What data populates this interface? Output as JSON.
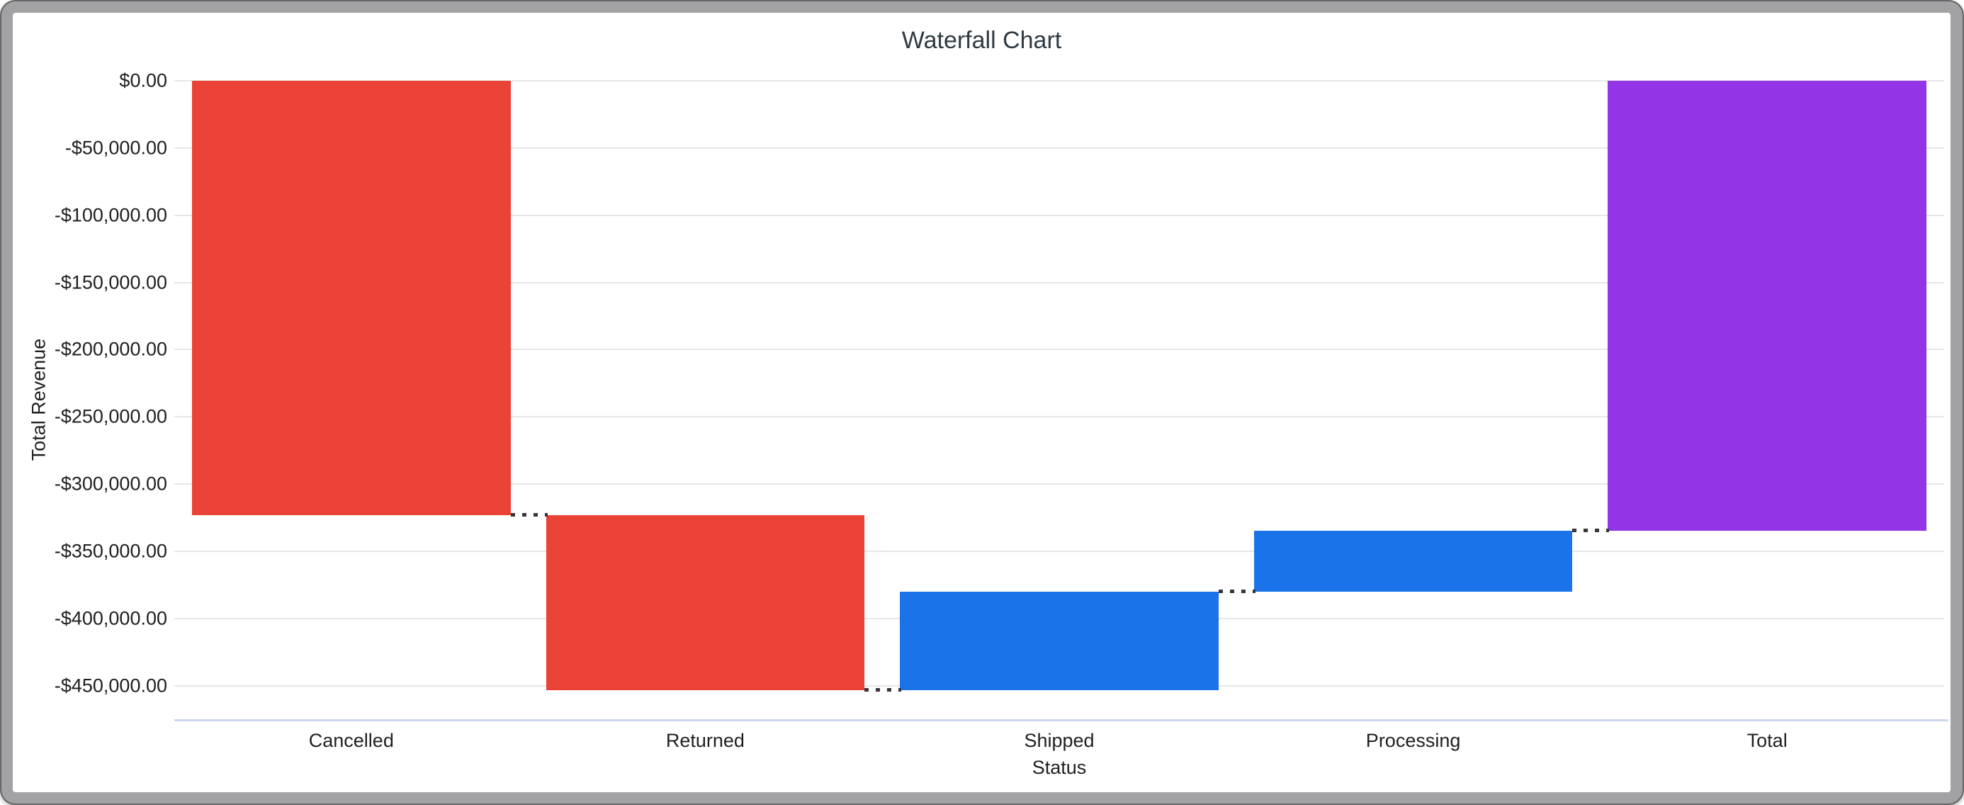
{
  "window": {
    "frame_color": "#a2a2a4",
    "frame_outline_color": "#46464a",
    "content_background": "#ffffff"
  },
  "chart_data": {
    "type": "bar",
    "subtype": "waterfall",
    "title": "Waterfall Chart",
    "xlabel": "Status",
    "ylabel": "Total Revenue",
    "grid": "horizontal",
    "legend_position": "none",
    "categories": [
      "Cancelled",
      "Returned",
      "Shipped",
      "Processing",
      "Total"
    ],
    "bars": [
      {
        "label": "Cancelled",
        "value": -323200,
        "start": 0,
        "end": -323200,
        "role": "decrease",
        "color": "#ea4335"
      },
      {
        "label": "Returned",
        "value": -130000,
        "start": -323200,
        "end": -453200,
        "role": "decrease",
        "color": "#ea4335"
      },
      {
        "label": "Shipped",
        "value": 73000,
        "start": -453200,
        "end": -380200,
        "role": "increase",
        "color": "#1a73e8"
      },
      {
        "label": "Processing",
        "value": 45300,
        "start": -380200,
        "end": -334900,
        "role": "increase",
        "color": "#1a73e8"
      },
      {
        "label": "Total",
        "value": -334900,
        "start": 0,
        "end": -334900,
        "role": "total",
        "color": "#9334e6"
      }
    ],
    "y_axis": {
      "min": -475000,
      "max": 0,
      "tick_values": [
        0,
        -50000,
        -100000,
        -150000,
        -200000,
        -250000,
        -300000,
        -350000,
        -400000,
        -450000
      ],
      "tick_labels": [
        "$0.00",
        "-$50,000.00",
        "-$100,000.00",
        "-$150,000.00",
        "-$200,000.00",
        "-$250,000.00",
        "-$300,000.00",
        "-$350,000.00",
        "-$400,000.00",
        "-$450,000.00"
      ]
    },
    "styles": {
      "grid_color": "#e7e7e7",
      "baseline_color": "#ccd5ed",
      "connector_color": "#35373a",
      "title_color": "#2e3a43",
      "tick_label_color": "#1f1f1f",
      "bar_gap_ratio": 0.1
    }
  }
}
